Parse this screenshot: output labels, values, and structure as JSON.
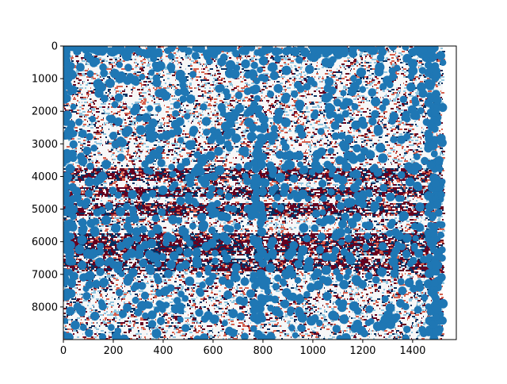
{
  "chart_data": {
    "type": "heatmap",
    "title": "",
    "xlabel": "",
    "ylabel": "",
    "x_ticks": [
      0,
      200,
      400,
      600,
      800,
      1000,
      1200,
      1400
    ],
    "y_ticks": [
      0,
      1000,
      2000,
      3000,
      4000,
      5000,
      6000,
      7000,
      8000
    ],
    "xlim": [
      0,
      1575
    ],
    "ylim": [
      9000,
      0
    ],
    "y_inverted": true,
    "grid": false,
    "image_extent": {
      "x": [
        0,
        1520
      ],
      "y": [
        0,
        9000
      ]
    },
    "colormap": "RdBu diverging (dark red – white – dark navy)",
    "colors": {
      "dark_red": "#67001f",
      "red": "#d6604d",
      "white": "#f7f7f7",
      "light_blue": "#92c5de",
      "navy": "#053061",
      "marker": "#1f77b4"
    },
    "overlay": {
      "type": "scatter",
      "marker": "circle",
      "color": "#1f77b4",
      "x_range": [
        0,
        1510
      ],
      "y_range": [
        0,
        9000
      ],
      "description_points": "dense blue circle markers covering most of the image"
    },
    "dark_band_rows": [
      {
        "y_start": 3700,
        "y_end": 4100
      },
      {
        "y_start": 4300,
        "y_end": 4600
      },
      {
        "y_start": 4800,
        "y_end": 5200
      },
      {
        "y_start": 5700,
        "y_end": 6400
      },
      {
        "y_start": 6500,
        "y_end": 6900
      }
    ]
  }
}
